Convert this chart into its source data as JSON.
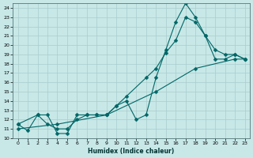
{
  "xlabel": "Humidex (Indice chaleur)",
  "background_color": "#c8e8e8",
  "grid_color": "#aacccc",
  "line_color": "#006666",
  "xlim": [
    -0.5,
    23.5
  ],
  "ylim": [
    10,
    24.5
  ],
  "xticks": [
    0,
    1,
    2,
    3,
    4,
    5,
    6,
    7,
    8,
    9,
    10,
    11,
    12,
    13,
    14,
    15,
    16,
    17,
    18,
    19,
    20,
    21,
    22,
    23
  ],
  "yticks": [
    10,
    11,
    12,
    13,
    14,
    15,
    16,
    17,
    18,
    19,
    20,
    21,
    22,
    23,
    24
  ],
  "line1_x": [
    0,
    1,
    2,
    3,
    4,
    5,
    6,
    7,
    8,
    9,
    10,
    11,
    12,
    13,
    14,
    15,
    16,
    17,
    18,
    19,
    20,
    21,
    22,
    23
  ],
  "line1_y": [
    11.5,
    10.8,
    12.5,
    12.5,
    10.5,
    10.5,
    12.5,
    12.5,
    12.5,
    12.5,
    13.5,
    14.0,
    12.0,
    12.5,
    16.5,
    19.5,
    22.5,
    24.5,
    23.0,
    21.0,
    18.5,
    18.5,
    19.0,
    18.5
  ],
  "line2_x": [
    0,
    2,
    3,
    4,
    5,
    6,
    7,
    8,
    9,
    10,
    11,
    13,
    14,
    15,
    16,
    17,
    18,
    19,
    20,
    21,
    22,
    23
  ],
  "line2_y": [
    11.5,
    12.5,
    11.5,
    11.0,
    11.0,
    12.0,
    12.5,
    12.5,
    12.5,
    13.5,
    14.5,
    16.5,
    17.5,
    19.2,
    20.5,
    23.0,
    22.5,
    21.0,
    19.5,
    19.0,
    19.0,
    18.5
  ],
  "line3_x": [
    0,
    4,
    9,
    14,
    18,
    22,
    23
  ],
  "line3_y": [
    11.0,
    11.5,
    12.5,
    15.0,
    17.5,
    18.5,
    18.5
  ]
}
